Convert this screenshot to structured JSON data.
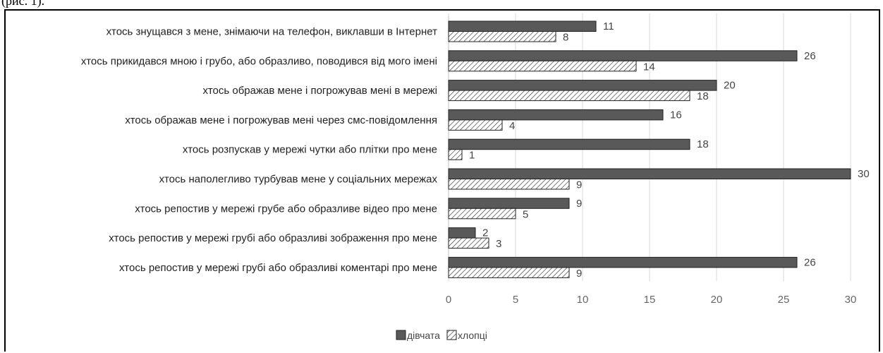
{
  "caption": "(рис. 1).",
  "chart_data": {
    "type": "bar",
    "orientation": "horizontal",
    "categories": [
      "хтось знущався з мене, знімаючи на телефон, виклавши в Інтернет",
      "хтось прикидався мною і грубо, або образливо, поводився від мого імені",
      "хтось ображав мене і погрожував мені в мережі",
      "хтось ображав мене і погрожував мені через смс-повідомлення",
      "хтось розпускав у мережі чутки або плітки про мене",
      "хтось наполегливо турбував мене у соціальних мережах",
      "хтось репостив у мережі грубе або образливе відео про мене",
      "хтось репостив у мережі грубі або образливі зображення про мене",
      "хтось репостив у мережі грубі або образливі коментарі про мене"
    ],
    "series": [
      {
        "name": "дівчата",
        "values": [
          11,
          26,
          20,
          16,
          18,
          30,
          9,
          2,
          26
        ],
        "color": "#595959",
        "pattern": "solid"
      },
      {
        "name": "хлопці",
        "values": [
          8,
          14,
          18,
          4,
          1,
          9,
          5,
          3,
          9
        ],
        "color": "#ffffff",
        "pattern": "hatched"
      }
    ],
    "xlim": [
      0,
      30
    ],
    "xticks": [
      "0",
      "5",
      "10",
      "15",
      "20",
      "25",
      "30"
    ],
    "grid": "vertical",
    "legend": "bottom-center",
    "title": "",
    "xlabel": "",
    "ylabel": ""
  }
}
